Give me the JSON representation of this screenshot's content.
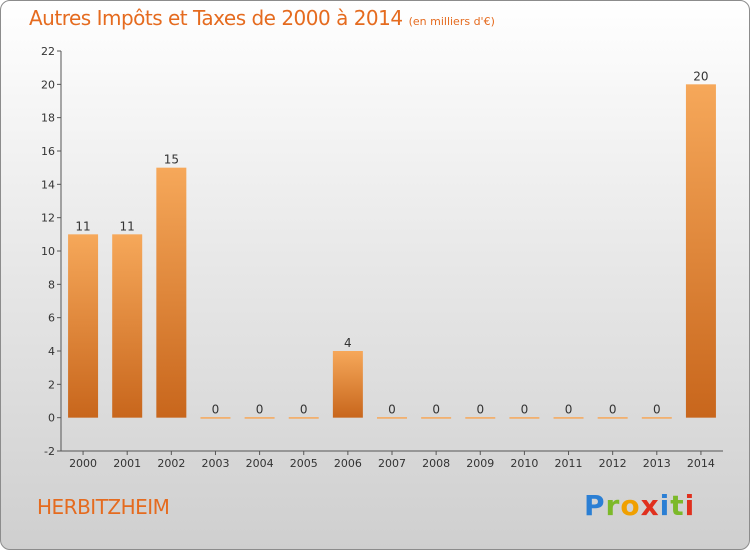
{
  "header": {
    "title": "Autres Impôts et Taxes de 2000 à 2014",
    "unit": "(en milliers d'€)"
  },
  "footer": {
    "place": "HERBITZHEIM",
    "logo": "Proxiti"
  },
  "colors": {
    "accent": "#e56b1f",
    "bar_top": "#f6a85a",
    "bar_bottom": "#c8661c"
  },
  "chart_data": {
    "type": "bar",
    "title": "Autres Impôts et Taxes de 2000 à 2014",
    "subtitle": "(en milliers d'€)",
    "xlabel": "",
    "ylabel": "",
    "categories": [
      "2000",
      "2001",
      "2002",
      "2003",
      "2004",
      "2005",
      "2006",
      "2007",
      "2008",
      "2009",
      "2010",
      "2011",
      "2012",
      "2013",
      "2014"
    ],
    "values": [
      11,
      11,
      15,
      0,
      0,
      0,
      4,
      0,
      0,
      0,
      0,
      0,
      0,
      0,
      20
    ],
    "ylim": [
      -2,
      22
    ],
    "yticks": [
      -2,
      0,
      2,
      4,
      6,
      8,
      10,
      12,
      14,
      16,
      18,
      20,
      22
    ],
    "grid": false,
    "legend": "none"
  }
}
